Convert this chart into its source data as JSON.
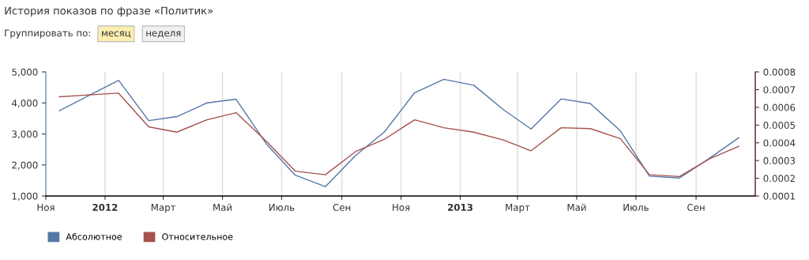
{
  "chart_data": {
    "type": "line",
    "title": "История показов по фразе «Политик»",
    "annotations": [
      "Группировать по:",
      "месяц",
      "неделя"
    ],
    "x": [
      "2011-11-15",
      "2011-12-15",
      "2012-01-15",
      "2012-02-15",
      "2012-03-15",
      "2012-04-15",
      "2012-05-15",
      "2012-06-15",
      "2012-07-15",
      "2012-08-15",
      "2012-09-15",
      "2012-10-15",
      "2012-11-15",
      "2012-12-15",
      "2013-01-15",
      "2013-02-15",
      "2013-03-15",
      "2013-04-15",
      "2013-05-15",
      "2013-06-15",
      "2013-07-15",
      "2013-08-15",
      "2013-09-15",
      "2013-10-15"
    ],
    "series": [
      {
        "name": "Абсолютное",
        "color": "#5577a6",
        "values": [
          3750,
          4230,
          4730,
          3430,
          3560,
          4000,
          4120,
          2690,
          1670,
          1300,
          2300,
          3070,
          4330,
          4760,
          4570,
          3770,
          3160,
          4130,
          3980,
          3100,
          1640,
          1580,
          2220,
          2880
        ]
      },
      {
        "name": "Относительное",
        "color": "#a5514d",
        "axis": "y2",
        "values": [
          0.00066,
          0.00067,
          0.00068,
          0.00049,
          0.00046,
          0.00053,
          0.00057,
          0.00041,
          0.00024,
          0.00022,
          0.00035,
          0.00042,
          0.00053,
          0.000485,
          0.00046,
          0.000415,
          0.000355,
          0.000485,
          0.00048,
          0.000424,
          0.00022,
          0.00021,
          0.00031,
          0.00038
        ]
      }
    ],
    "xlim": [
      "2011-11-01",
      "2013-11-01"
    ],
    "xticks": [
      {
        "value": "2011-11-01",
        "label": "Ноя"
      },
      {
        "value": "2012-01-01",
        "label": "2012"
      },
      {
        "value": "2012-03-01",
        "label": "Март"
      },
      {
        "value": "2012-05-01",
        "label": "Май"
      },
      {
        "value": "2012-07-01",
        "label": "Июль"
      },
      {
        "value": "2012-09-01",
        "label": "Сен"
      },
      {
        "value": "2012-11-01",
        "label": "Ноя"
      },
      {
        "value": "2013-01-01",
        "label": "2013"
      },
      {
        "value": "2013-03-01",
        "label": "Март"
      },
      {
        "value": "2013-05-01",
        "label": "Май"
      },
      {
        "value": "2013-07-01",
        "label": "Июль"
      },
      {
        "value": "2013-09-01",
        "label": "Сен"
      }
    ],
    "ylim": [
      1000,
      5000
    ],
    "yticks": [
      {
        "value": 1000,
        "label": "1,000"
      },
      {
        "value": 2000,
        "label": "2,000"
      },
      {
        "value": 3000,
        "label": "3,000"
      },
      {
        "value": 4000,
        "label": "4,000"
      },
      {
        "value": 5000,
        "label": "5,000"
      }
    ],
    "y2lim": [
      0.0001,
      0.0008
    ],
    "y2ticks": [
      0.0001,
      0.0002,
      0.0003,
      0.0004,
      0.0005,
      0.0006,
      0.0007,
      0.0008
    ],
    "grid": "x",
    "legend": "bottom left",
    "marker": "none",
    "line_style": "solid"
  }
}
